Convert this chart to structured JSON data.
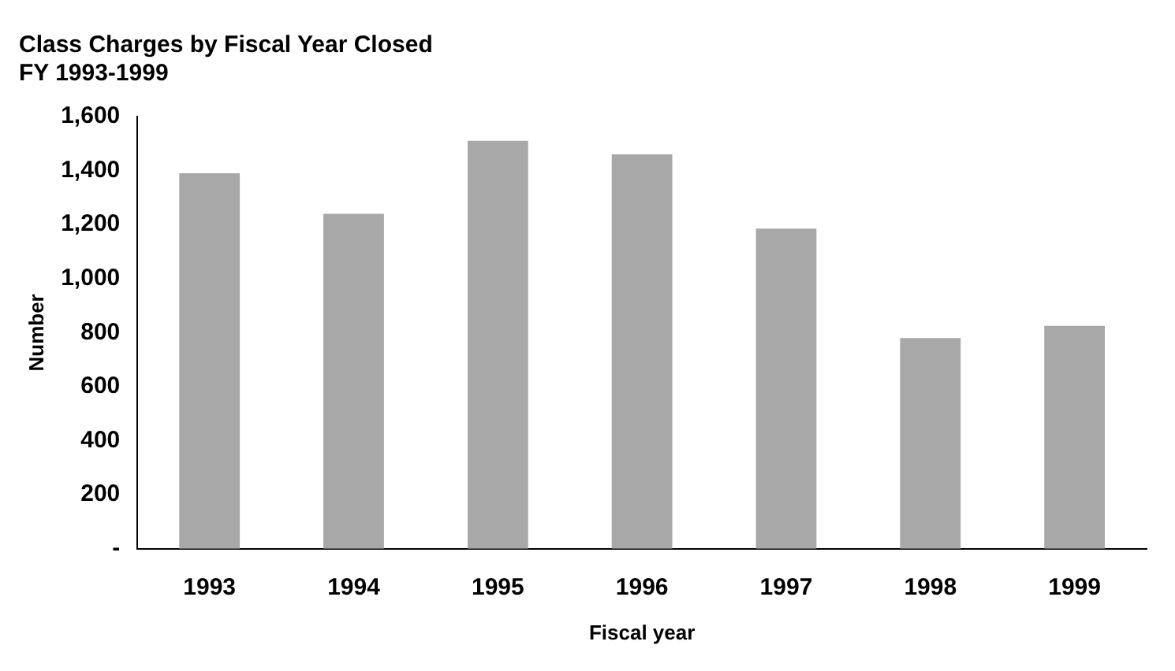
{
  "chart_data": {
    "type": "bar",
    "title": "Class Charges by Fiscal Year Closed",
    "subtitle": "FY 1993-1999",
    "xlabel": "Fiscal year",
    "ylabel": "Number",
    "categories": [
      "1993",
      "1994",
      "1995",
      "1996",
      "1997",
      "1998",
      "1999"
    ],
    "values": [
      1390,
      1240,
      1510,
      1460,
      1185,
      780,
      825
    ],
    "color": "#a8a8a8",
    "ylim": [
      0,
      1600
    ],
    "yticks": [
      {
        "value": 0,
        "label": "-"
      },
      200,
      400,
      600,
      800,
      {
        "value": 1000,
        "label": "1,000"
      },
      {
        "value": 1200,
        "label": "1,200"
      },
      {
        "value": 1400,
        "label": "1,400"
      },
      {
        "value": 1600,
        "label": "1,600"
      }
    ],
    "grid": false,
    "legend": false
  }
}
